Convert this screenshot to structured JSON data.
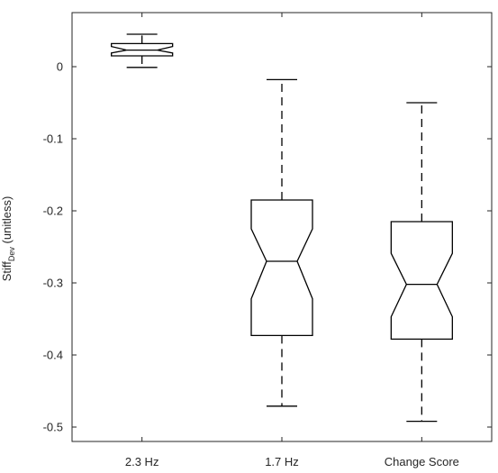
{
  "chart_data": {
    "type": "box",
    "title": "",
    "xlabel": "",
    "ylabel": {
      "main": "Stiff",
      "subscript": "Dev",
      "suffix": " (unitless)"
    },
    "ylim": [
      -0.52,
      0.075
    ],
    "yticks": [
      0,
      -0.1,
      -0.2,
      -0.3,
      -0.4,
      -0.5
    ],
    "ytick_labels": [
      "0",
      "-0.1",
      "-0.2",
      "-0.3",
      "-0.4",
      "-0.5"
    ],
    "categories": [
      "2.3 Hz",
      "1.7 Hz",
      "Change Score"
    ],
    "notched": true,
    "grid": false,
    "boxes": [
      {
        "category": "2.3 Hz",
        "whisker_low": -0.001,
        "q1": 0.015,
        "notch_low": 0.019,
        "median": 0.023,
        "notch_high": 0.028,
        "q3": 0.032,
        "whisker_high": 0.045
      },
      {
        "category": "1.7 Hz",
        "whisker_low": -0.471,
        "q1": -0.373,
        "notch_low": -0.322,
        "median": -0.27,
        "notch_high": -0.225,
        "q3": -0.185,
        "whisker_high": -0.018
      },
      {
        "category": "Change Score",
        "whisker_low": -0.492,
        "q1": -0.378,
        "notch_low": -0.347,
        "median": -0.302,
        "notch_high": -0.259,
        "q3": -0.215,
        "whisker_high": -0.05
      }
    ],
    "colors": {
      "axis": "#262626",
      "box": "#000000",
      "background": "#ffffff"
    }
  }
}
